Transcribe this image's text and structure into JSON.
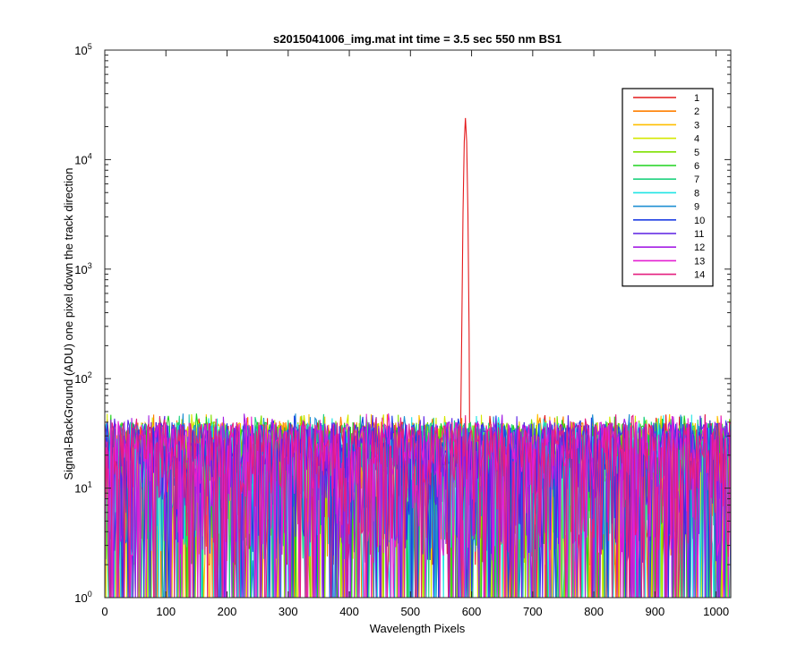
{
  "chart_data": {
    "type": "line",
    "title": "s2015041006_img.mat int time = 3.5 sec  550 nm BS1",
    "xlabel": "Wavelength Pixels",
    "ylabel": "Signal-BackGround (ADU) one pixel down the track direction",
    "xlim": [
      0,
      1024
    ],
    "ylim": [
      1,
      100000
    ],
    "yscale": "log",
    "grid": false,
    "legend_position": "top-right",
    "x_ticks": [
      "0",
      "100",
      "200",
      "300",
      "400",
      "500",
      "600",
      "700",
      "800",
      "900",
      "1000"
    ],
    "y_ticks": [
      {
        "base": "10",
        "exp": "0"
      },
      {
        "base": "10",
        "exp": "1"
      },
      {
        "base": "10",
        "exp": "2"
      },
      {
        "base": "10",
        "exp": "3"
      },
      {
        "base": "10",
        "exp": "4"
      },
      {
        "base": "10",
        "exp": "5"
      }
    ],
    "noise_level": {
      "typical_min": 1,
      "typical_max": 45
    },
    "series": [
      {
        "name": "1",
        "color": "#e41a1c",
        "peak": {
          "x": 590,
          "y": 24000
        }
      },
      {
        "name": "2",
        "color": "#ff7f00"
      },
      {
        "name": "3",
        "color": "#ffbf00"
      },
      {
        "name": "4",
        "color": "#d4e800"
      },
      {
        "name": "5",
        "color": "#7fe000"
      },
      {
        "name": "6",
        "color": "#1fd21f"
      },
      {
        "name": "7",
        "color": "#1fd27f"
      },
      {
        "name": "8",
        "color": "#1fe4e4"
      },
      {
        "name": "9",
        "color": "#1f8fd2"
      },
      {
        "name": "10",
        "color": "#1f3fe4"
      },
      {
        "name": "11",
        "color": "#5a1fe4"
      },
      {
        "name": "12",
        "color": "#a51fe4"
      },
      {
        "name": "13",
        "color": "#e41fd2"
      },
      {
        "name": "14",
        "color": "#e41f7f"
      }
    ]
  }
}
